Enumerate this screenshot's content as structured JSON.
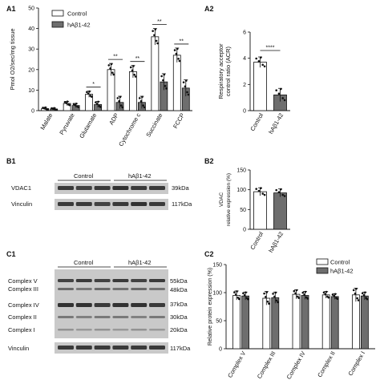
{
  "panels": {
    "a1": "A1",
    "a2": "A2",
    "b1": "B1",
    "b2": "B2",
    "c1": "C1",
    "c2": "C2"
  },
  "colors": {
    "control": "#ffffff",
    "abeta": "#6e6e6e",
    "blot_bg": "#c9c9c9",
    "band": "#2a2a2a"
  },
  "legend": {
    "control": "Control",
    "abeta": "hAβ1-42"
  },
  "chart_data": [
    {
      "id": "A1",
      "type": "bar",
      "ylabel": "Pmol O2/sec/mg tissue",
      "ylim": [
        0,
        50
      ],
      "yticks": [
        0,
        10,
        20,
        30,
        40,
        50
      ],
      "categories": [
        "Malate",
        "Pyruvate",
        "Glutamate",
        "ADP",
        "Cytochrome c",
        "Succinate",
        "FCCP"
      ],
      "series": [
        {
          "name": "Control",
          "values": [
            1.0,
            3.5,
            8.0,
            20.0,
            19.0,
            36.0,
            27.0
          ],
          "errors": [
            0.6,
            1.0,
            1.5,
            3.0,
            3.0,
            4.0,
            3.5
          ]
        },
        {
          "name": "hAβ1-42",
          "values": [
            0.8,
            2.5,
            3.0,
            4.0,
            4.0,
            14.0,
            11.0
          ],
          "errors": [
            0.5,
            1.0,
            1.5,
            3.0,
            3.0,
            4.0,
            4.0
          ]
        }
      ],
      "significance": [
        "",
        "",
        "*",
        "**",
        "**",
        "**",
        "**"
      ]
    },
    {
      "id": "A2",
      "type": "bar",
      "ylabel": "Respiratory acceptor control ratio (ACR)",
      "ylim": [
        0,
        6
      ],
      "yticks": [
        0,
        2,
        4,
        6
      ],
      "categories": [
        "Control",
        "hAβ1-42"
      ],
      "values": [
        3.7,
        1.2
      ],
      "errors": [
        0.4,
        0.5
      ],
      "significance": "****"
    },
    {
      "id": "B2",
      "type": "bar",
      "ylabel": "VDAC relative expression (%)",
      "ylim": [
        0,
        150
      ],
      "yticks": [
        0,
        50,
        100,
        150
      ],
      "categories": [
        "Control",
        "hAβ1-42"
      ],
      "values": [
        95,
        92
      ],
      "errors": [
        10,
        10
      ]
    },
    {
      "id": "C2",
      "type": "bar",
      "ylabel": "Relative protein expression (%)",
      "ylim": [
        0,
        150
      ],
      "yticks": [
        0,
        50,
        100,
        150
      ],
      "categories": [
        "Complex V",
        "Complex III",
        "Complex IV",
        "Complex II",
        "Complex I"
      ],
      "series": [
        {
          "name": "Control",
          "values": [
            95,
            90,
            97,
            96,
            96
          ],
          "errors": [
            8,
            12,
            8,
            6,
            12
          ]
        },
        {
          "name": "hAβ1-42",
          "values": [
            94,
            91,
            95,
            93,
            94
          ],
          "errors": [
            7,
            10,
            7,
            5,
            7
          ]
        }
      ]
    }
  ],
  "blots": {
    "b1": {
      "groups": {
        "control": "Control",
        "abeta": "hAβ1-42"
      },
      "rows": [
        {
          "name": "VDAC1",
          "size": "39kDa"
        },
        {
          "name": "Vinculin",
          "size": "117kDa"
        }
      ]
    },
    "c1": {
      "groups": {
        "control": "Control",
        "abeta": "hAβ1-42"
      },
      "rows": [
        {
          "name": "Complex V",
          "size": "55kDa"
        },
        {
          "name": "Complex III",
          "size": "48kDa"
        },
        {
          "name": "Complex IV",
          "size": "37kDa"
        },
        {
          "name": "Complex II",
          "size": "30kDa"
        },
        {
          "name": "Complex I",
          "size": "20kDa"
        },
        {
          "name": "Vinculin",
          "size": "117kDa"
        }
      ]
    }
  }
}
